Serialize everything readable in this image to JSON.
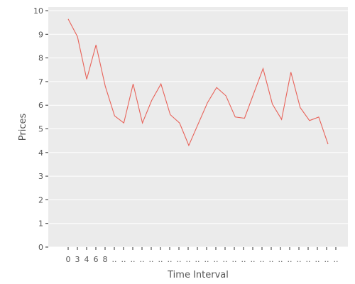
{
  "chart_data": {
    "type": "line",
    "title": "",
    "xlabel": "Time Interval",
    "ylabel": "Prices",
    "ylim": [
      0,
      10
    ],
    "yticks": [
      "0",
      "1",
      "2",
      "3",
      "4",
      "5",
      "6",
      "7",
      "8",
      "9",
      "10"
    ],
    "x_tick_labels": [
      "0",
      "3",
      "4",
      "6",
      "8",
      "..",
      "..",
      "..",
      "..",
      "..",
      "..",
      "..",
      "..",
      "..",
      "..",
      "..",
      "..",
      "..",
      "..",
      "..",
      "..",
      "..",
      "..",
      "..",
      "..",
      "..",
      "..",
      "..",
      "..",
      ".."
    ],
    "series": [
      {
        "color": "#e8635a",
        "values": [
          9.65,
          8.9,
          7.1,
          8.55,
          6.8,
          5.55,
          5.25,
          6.9,
          5.25,
          6.2,
          6.9,
          5.6,
          5.25,
          4.3,
          5.2,
          6.1,
          6.75,
          6.4,
          5.5,
          5.45,
          6.5,
          7.55,
          6.05,
          5.4,
          7.4,
          5.9,
          5.35,
          5.5,
          4.35
        ]
      }
    ],
    "grid": true,
    "panel_background": "#ebebeb",
    "grid_color": "#ffffff"
  }
}
